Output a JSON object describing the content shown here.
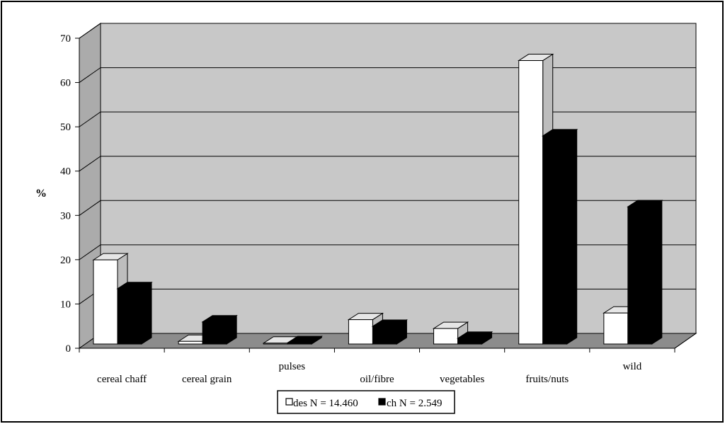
{
  "chart_data": {
    "type": "bar",
    "title": "",
    "xlabel": "",
    "ylabel": "%",
    "ylim": [
      0,
      70
    ],
    "yticks": [
      0,
      10,
      20,
      30,
      40,
      50,
      60,
      70
    ],
    "categories": [
      "cereal chaff",
      "cereal grain",
      "pulses",
      "oil/fibre",
      "vegetables",
      "fruits/nuts",
      "wild"
    ],
    "series": [
      {
        "name": "des N = 14.460",
        "color": "#ffffff",
        "values": [
          19,
          0.6,
          0.2,
          5.5,
          3.5,
          64,
          7
        ]
      },
      {
        "name": "ch N = 2.549",
        "color": "#000000",
        "values": [
          12.5,
          5,
          0.3,
          4,
          1.3,
          47,
          31
        ]
      }
    ],
    "grid": true,
    "legend": "bottom-center"
  }
}
